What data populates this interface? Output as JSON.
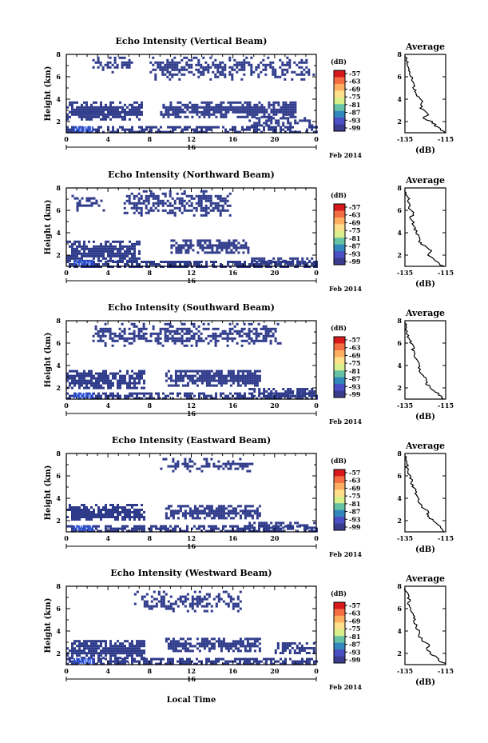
{
  "figure": {
    "x_axis_label": "Local Time",
    "date_label": "Feb 2014",
    "day_label": "16",
    "colorbar_unit": "(dB)"
  },
  "colors": {
    "echo_fill": "#2e3a8a",
    "ground_clutter": "#2f4fd8",
    "axis": "#000000"
  },
  "colorbar": {
    "tick_labels": [
      "-57",
      "-63",
      "-69",
      "-75",
      "-81",
      "-87",
      "-93",
      "-99"
    ],
    "colors": [
      "#d7191c",
      "#f46d43",
      "#fdae61",
      "#fee08b",
      "#d9ef8b",
      "#66c2a5",
      "#3288bd",
      "#4a4fc4",
      "#3b3b8f"
    ]
  },
  "chart_data": [
    {
      "type": "heatmap",
      "title": "Echo Intensity (Vertical Beam)",
      "xlabel": "",
      "ylabel": "Height (km)",
      "xlim": [
        0,
        24
      ],
      "ylim": [
        1,
        8
      ],
      "x_ticks": [
        "0",
        "4",
        "8",
        "12",
        "16",
        "20",
        "0"
      ],
      "y_ticks": [
        "2",
        "4",
        "6",
        "8"
      ],
      "echo_regions_hours_km": [
        {
          "x": [
            0,
            24
          ],
          "y": [
            1.0,
            1.6
          ]
        },
        {
          "x": [
            0,
            7.2
          ],
          "y": [
            2.2,
            3.8
          ]
        },
        {
          "x": [
            9.0,
            22.0
          ],
          "y": [
            2.4,
            3.8
          ]
        },
        {
          "x": [
            17.5,
            23.5
          ],
          "y": [
            1.7,
            2.4
          ]
        },
        {
          "x": [
            2.5,
            6.5
          ],
          "y": [
            6.4,
            7.8
          ]
        },
        {
          "x": [
            8.0,
            23.8
          ],
          "y": [
            5.8,
            7.8
          ]
        }
      ],
      "profile": {
        "title": "Average",
        "xlabel": "(dB)",
        "xlim": [
          -135,
          -115
        ],
        "ylim": [
          1,
          8
        ],
        "x_ticks": [
          "-135",
          "-115"
        ],
        "y_ticks": [
          "2",
          "4",
          "6",
          "8"
        ],
        "height_km": [
          1.0,
          1.5,
          2.0,
          2.3,
          2.7,
          3.2,
          3.8,
          4.3,
          4.8,
          5.3,
          5.8,
          6.3,
          6.8,
          7.3,
          7.8
        ],
        "value_db": [
          -115,
          -119,
          -122,
          -126,
          -123,
          -127,
          -127,
          -129,
          -130,
          -131,
          -131,
          -133,
          -133,
          -134,
          -135
        ]
      }
    },
    {
      "type": "heatmap",
      "title": "Echo Intensity (Northward Beam)",
      "xlabel": "",
      "ylabel": "Height (km)",
      "xlim": [
        0,
        24
      ],
      "ylim": [
        1,
        8
      ],
      "x_ticks": [
        "0",
        "4",
        "8",
        "12",
        "16",
        "20",
        "0"
      ],
      "y_ticks": [
        "2",
        "4",
        "6",
        "8"
      ],
      "echo_regions_hours_km": [
        {
          "x": [
            0,
            24
          ],
          "y": [
            1.0,
            1.5
          ]
        },
        {
          "x": [
            0,
            7.0
          ],
          "y": [
            1.5,
            3.3
          ]
        },
        {
          "x": [
            10.0,
            17.5
          ],
          "y": [
            2.2,
            3.4
          ]
        },
        {
          "x": [
            17.5,
            23.5
          ],
          "y": [
            1.2,
            1.8
          ]
        },
        {
          "x": [
            5.5,
            16.0
          ],
          "y": [
            5.6,
            7.8
          ]
        },
        {
          "x": [
            0.5,
            3.5
          ],
          "y": [
            6.0,
            7.6
          ]
        }
      ],
      "profile": {
        "title": "Average",
        "xlabel": "(dB)",
        "xlim": [
          -135,
          -115
        ],
        "ylim": [
          1,
          8
        ],
        "x_ticks": [
          "-135",
          "-115"
        ],
        "y_ticks": [
          "2",
          "4",
          "6",
          "8"
        ],
        "height_km": [
          1.0,
          1.5,
          2.0,
          2.4,
          2.8,
          3.2,
          3.8,
          4.3,
          4.8,
          5.3,
          5.8,
          6.3,
          6.8,
          7.3,
          7.8
        ],
        "value_db": [
          -116,
          -120,
          -124,
          -122,
          -125,
          -128,
          -129,
          -130,
          -131,
          -132,
          -131,
          -133,
          -133,
          -134,
          -135
        ]
      }
    },
    {
      "type": "heatmap",
      "title": "Echo Intensity (Southward Beam)",
      "xlabel": "",
      "ylabel": "Height (km)",
      "xlim": [
        0,
        24
      ],
      "ylim": [
        1,
        8
      ],
      "x_ticks": [
        "0",
        "4",
        "8",
        "12",
        "16",
        "20",
        "0"
      ],
      "y_ticks": [
        "2",
        "4",
        "6",
        "8"
      ],
      "echo_regions_hours_km": [
        {
          "x": [
            0,
            24
          ],
          "y": [
            1.0,
            1.6
          ]
        },
        {
          "x": [
            0,
            7.5
          ],
          "y": [
            2.0,
            3.6
          ]
        },
        {
          "x": [
            9.5,
            18.5
          ],
          "y": [
            2.2,
            3.6
          ]
        },
        {
          "x": [
            17.5,
            23.8
          ],
          "y": [
            1.3,
            2.0
          ]
        },
        {
          "x": [
            2.5,
            20.5
          ],
          "y": [
            5.8,
            7.8
          ]
        }
      ],
      "profile": {
        "title": "Average",
        "xlabel": "(dB)",
        "xlim": [
          -135,
          -115
        ],
        "ylim": [
          1,
          8
        ],
        "x_ticks": [
          "-135",
          "-115"
        ],
        "y_ticks": [
          "2",
          "4",
          "6",
          "8"
        ],
        "height_km": [
          1.0,
          1.5,
          2.0,
          2.4,
          2.8,
          3.2,
          3.8,
          4.3,
          4.8,
          5.3,
          5.8,
          6.3,
          6.8,
          7.3,
          7.8
        ],
        "value_db": [
          -116,
          -119,
          -122,
          -125,
          -124,
          -127,
          -128,
          -129,
          -130,
          -131,
          -131,
          -133,
          -134,
          -134,
          -135
        ]
      }
    },
    {
      "type": "heatmap",
      "title": "Echo Intensity (Eastward Beam)",
      "xlabel": "",
      "ylabel": "Height (km)",
      "xlim": [
        0,
        24
      ],
      "ylim": [
        1,
        8
      ],
      "x_ticks": [
        "0",
        "4",
        "8",
        "12",
        "16",
        "20",
        "0"
      ],
      "y_ticks": [
        "2",
        "4",
        "6",
        "8"
      ],
      "echo_regions_hours_km": [
        {
          "x": [
            0,
            24
          ],
          "y": [
            1.0,
            1.6
          ]
        },
        {
          "x": [
            0,
            7.5
          ],
          "y": [
            2.0,
            3.5
          ]
        },
        {
          "x": [
            9.5,
            18.5
          ],
          "y": [
            2.3,
            3.4
          ]
        },
        {
          "x": [
            17.5,
            23.8
          ],
          "y": [
            1.3,
            1.9
          ]
        },
        {
          "x": [
            9.0,
            18.0
          ],
          "y": [
            6.4,
            7.6
          ]
        }
      ],
      "profile": {
        "title": "Average",
        "xlabel": "(dB)",
        "xlim": [
          -135,
          -115
        ],
        "ylim": [
          1,
          8
        ],
        "x_ticks": [
          "-135",
          "-115"
        ],
        "y_ticks": [
          "2",
          "4",
          "6",
          "8"
        ],
        "height_km": [
          1.0,
          1.5,
          2.0,
          2.4,
          2.8,
          3.2,
          3.8,
          4.3,
          4.8,
          5.3,
          5.8,
          6.3,
          6.8,
          7.3,
          7.8
        ],
        "value_db": [
          -115,
          -118,
          -121,
          -124,
          -123,
          -127,
          -128,
          -130,
          -130,
          -132,
          -132,
          -133,
          -134,
          -134,
          -135
        ]
      }
    },
    {
      "type": "heatmap",
      "title": "Echo Intensity (Westward Beam)",
      "xlabel": "Local Time",
      "ylabel": "Height (km)",
      "xlim": [
        0,
        24
      ],
      "ylim": [
        1,
        8
      ],
      "x_ticks": [
        "0",
        "4",
        "8",
        "12",
        "16",
        "20",
        "0"
      ],
      "y_ticks": [
        "2",
        "4",
        "6",
        "8"
      ],
      "echo_regions_hours_km": [
        {
          "x": [
            0,
            24
          ],
          "y": [
            1.0,
            1.6
          ]
        },
        {
          "x": [
            0,
            7.5
          ],
          "y": [
            1.6,
            3.2
          ]
        },
        {
          "x": [
            9.5,
            18.5
          ],
          "y": [
            2.2,
            3.4
          ]
        },
        {
          "x": [
            20.0,
            23.8
          ],
          "y": [
            2.0,
            3.0
          ]
        },
        {
          "x": [
            6.5,
            17.0
          ],
          "y": [
            5.8,
            7.6
          ]
        }
      ],
      "profile": {
        "title": "Average",
        "xlabel": "(dB)",
        "xlim": [
          -135,
          -115
        ],
        "ylim": [
          1,
          8
        ],
        "x_ticks": [
          "-135",
          "-115"
        ],
        "y_ticks": [
          "2",
          "4",
          "6",
          "8"
        ],
        "height_km": [
          1.0,
          1.5,
          2.0,
          2.4,
          2.8,
          3.2,
          3.8,
          4.3,
          4.8,
          5.3,
          5.8,
          6.3,
          6.8,
          7.3,
          7.8
        ],
        "value_db": [
          -115,
          -119,
          -122,
          -125,
          -123,
          -127,
          -128,
          -129,
          -130,
          -131,
          -132,
          -133,
          -133,
          -134,
          -135
        ]
      }
    }
  ]
}
